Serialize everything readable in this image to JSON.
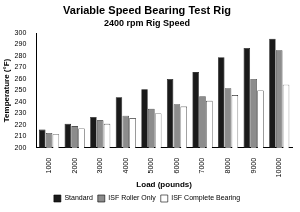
{
  "chart_data": {
    "type": "bar",
    "title": "Variable Speed Bearing Test Rig",
    "subtitle": "2400 rpm Rig Speed",
    "xlabel": "Load (pounds)",
    "ylabel": "Temperature (°F)",
    "categories": [
      "1000",
      "2000",
      "3000",
      "4000",
      "5000",
      "6000",
      "7000",
      "8000",
      "9000",
      "10000"
    ],
    "series": [
      {
        "name": "Standard",
        "color": "#1a1a1a",
        "values": [
          216,
          221,
          227,
          244,
          251,
          260,
          266,
          279,
          287,
          295
        ]
      },
      {
        "name": "ISF Roller Only",
        "color": "#8c8c8c",
        "values": [
          213,
          219,
          224,
          228,
          234,
          238,
          245,
          252,
          260,
          285
        ]
      },
      {
        "name": "ISF Complete Bearing",
        "color": "#ffffff",
        "values": [
          212,
          217,
          221,
          226,
          230,
          236,
          241,
          246,
          250,
          255
        ]
      }
    ],
    "ylim": [
      200,
      300
    ],
    "yticks": [
      200,
      210,
      220,
      230,
      240,
      250,
      260,
      270,
      280,
      290,
      300
    ],
    "grid": false,
    "legend": "bottom"
  }
}
